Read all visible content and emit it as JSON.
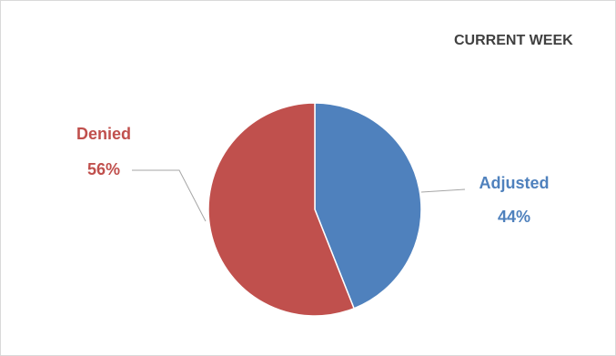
{
  "chart_data": {
    "type": "pie",
    "title": "CURRENT WEEK",
    "categories": [
      "Adjusted",
      "Denied"
    ],
    "values": [
      44,
      56
    ],
    "labels": [
      {
        "name": "Adjusted",
        "percent": "44%"
      },
      {
        "name": "Denied",
        "percent": "56%"
      }
    ],
    "colors": [
      "#4f81bd",
      "#c0504d"
    ],
    "legend": "none"
  }
}
